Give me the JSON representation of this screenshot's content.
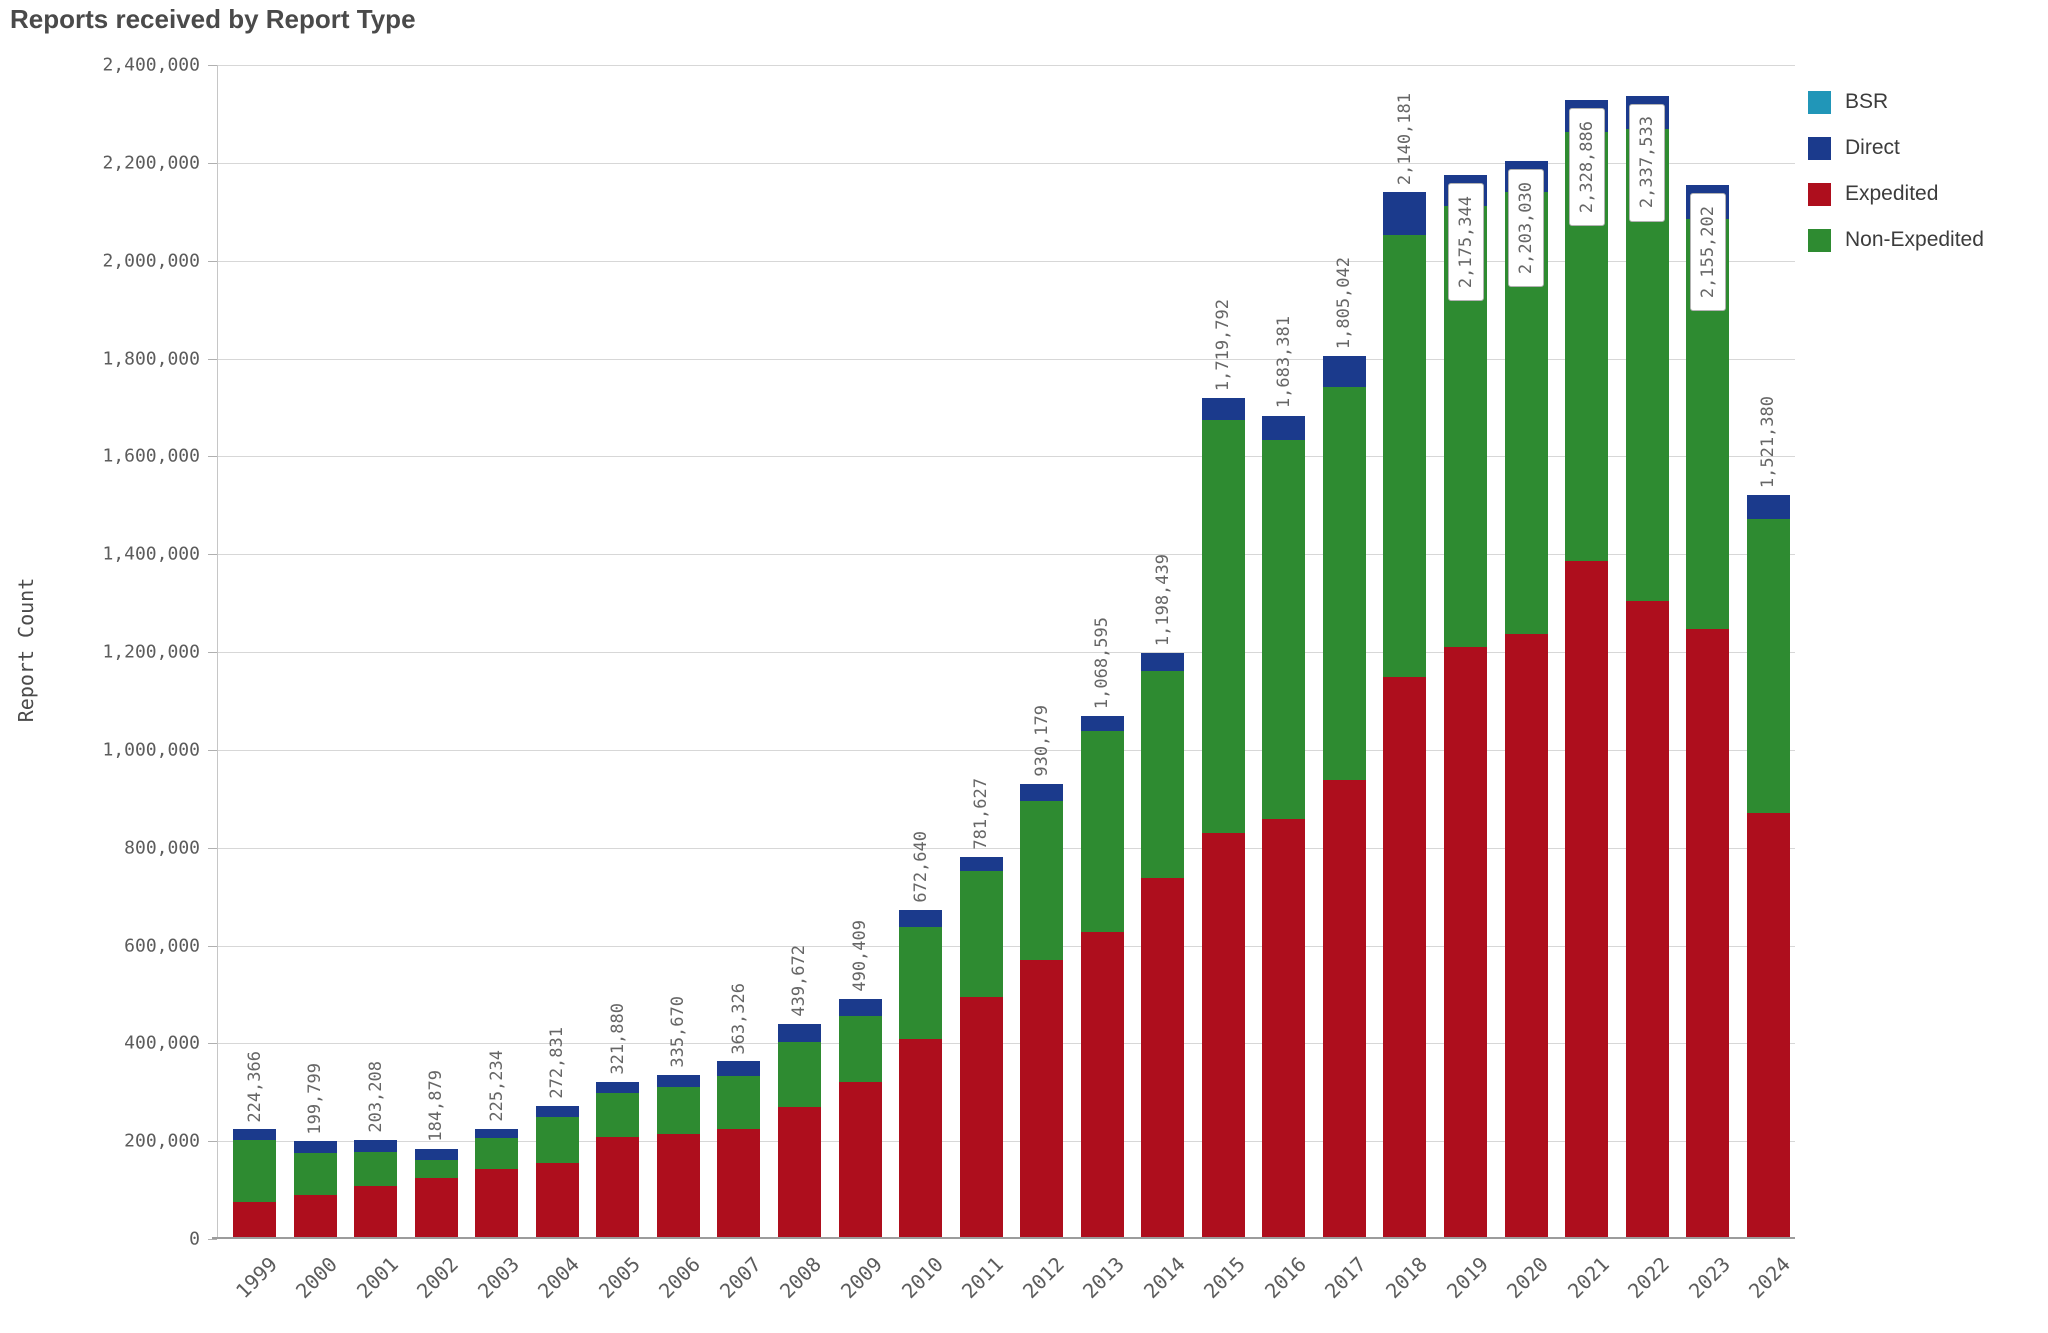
{
  "title": "Reports received by Report Type",
  "y_axis": {
    "label": "Report Count",
    "ticks": [
      {
        "value": 0,
        "label": "0"
      },
      {
        "value": 200000,
        "label": "200,000"
      },
      {
        "value": 400000,
        "label": "400,000"
      },
      {
        "value": 600000,
        "label": "600,000"
      },
      {
        "value": 800000,
        "label": "800,000"
      },
      {
        "value": 1000000,
        "label": "1,000,000"
      },
      {
        "value": 1200000,
        "label": "1,200,000"
      },
      {
        "value": 1400000,
        "label": "1,400,000"
      },
      {
        "value": 1600000,
        "label": "1,600,000"
      },
      {
        "value": 1800000,
        "label": "1,800,000"
      },
      {
        "value": 2000000,
        "label": "2,000,000"
      },
      {
        "value": 2200000,
        "label": "2,200,000"
      },
      {
        "value": 2400000,
        "label": "2,400,000"
      }
    ]
  },
  "legend": [
    {
      "name": "BSR",
      "color": "#2196b8"
    },
    {
      "name": "Direct",
      "color": "#1b3a8c"
    },
    {
      "name": "Expedited",
      "color": "#ae0e1d"
    },
    {
      "name": "Non-Expedited",
      "color": "#2e8b31"
    }
  ],
  "chart_data": {
    "type": "bar",
    "stacked": true,
    "grid": "horizontal",
    "legend_position": "right",
    "title": "Reports received by Report Type",
    "xlabel": "",
    "ylabel": "Report Count",
    "ylim": [
      0,
      2400000
    ],
    "categories": [
      "1999",
      "2000",
      "2001",
      "2002",
      "2003",
      "2004",
      "2005",
      "2006",
      "2007",
      "2008",
      "2009",
      "2010",
      "2011",
      "2012",
      "2013",
      "2014",
      "2015",
      "2016",
      "2017",
      "2018",
      "2019",
      "2020",
      "2021",
      "2022",
      "2023",
      "2024"
    ],
    "series": [
      {
        "name": "Expedited",
        "color": "#ae0e1d",
        "values_estimated": true,
        "values": [
          75000,
          90000,
          109000,
          124000,
          143000,
          156000,
          208000,
          214000,
          225000,
          270000,
          322000,
          408000,
          495000,
          571000,
          628000,
          738000,
          830000,
          859000,
          939000,
          1149000,
          1211000,
          1237000,
          1386000,
          1305000,
          1248000,
          870000
        ]
      },
      {
        "name": "Non-Expedited",
        "color": "#2e8b31",
        "values_estimated": true,
        "values": [
          127366,
          85799,
          68208,
          37879,
          63234,
          92831,
          90880,
          96670,
          108326,
          132672,
          134409,
          230640,
          257627,
          325179,
          410595,
          423439,
          844792,
          774381,
          802042,
          903181,
          901344,
          904030,
          876886,
          964533,
          837202,
          601380
        ]
      },
      {
        "name": "Direct",
        "color": "#1b3a8c",
        "values_estimated": true,
        "values": [
          22000,
          24000,
          26000,
          23000,
          19000,
          24000,
          23000,
          25000,
          30000,
          37000,
          34000,
          34000,
          29000,
          34000,
          30000,
          37000,
          45000,
          50000,
          64000,
          88000,
          63000,
          62000,
          66000,
          68000,
          70000,
          50000
        ]
      },
      {
        "name": "BSR",
        "color": "#2196b8",
        "values_estimated": true,
        "values": [
          0,
          0,
          0,
          0,
          0,
          0,
          0,
          0,
          0,
          0,
          0,
          0,
          0,
          0,
          0,
          0,
          0,
          0,
          0,
          0,
          0,
          0,
          0,
          0,
          0,
          0
        ]
      }
    ],
    "totals": [
      224366,
      199799,
      203208,
      184879,
      225234,
      272831,
      321880,
      335670,
      363326,
      439672,
      490409,
      672640,
      781627,
      930179,
      1068595,
      1198439,
      1719792,
      1683381,
      1805042,
      2140181,
      2175344,
      2203030,
      2328886,
      2337533,
      2155202,
      1521380
    ],
    "total_labels": [
      "224,366",
      "199,799",
      "203,208",
      "184,879",
      "225,234",
      "272,831",
      "321,880",
      "335,670",
      "363,326",
      "439,672",
      "490,409",
      "672,640",
      "781,627",
      "930,179",
      "1,068,595",
      "1,198,439",
      "1,719,792",
      "1,683,381",
      "1,805,042",
      "2,140,181",
      "2,175,344",
      "2,203,030",
      "2,328,886",
      "2,337,533",
      "2,155,202",
      "1,521,380"
    ],
    "boxed_label_years": [
      "2019",
      "2020",
      "2021",
      "2022",
      "2023"
    ]
  }
}
